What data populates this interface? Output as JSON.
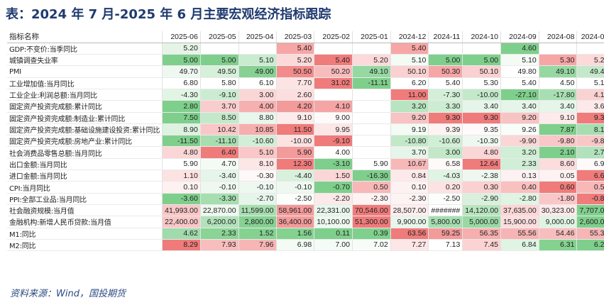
{
  "title": "表：2024 年 7 月-2025 年 6 月主要宏观经济指标跟踪",
  "source": "资料来源：Wind，国投期货",
  "table": {
    "label_header": "指标名称",
    "columns": [
      "2025-06",
      "2025-05",
      "2025-04",
      "2025-03",
      "2025-02",
      "2025-01",
      "2024-12",
      "2024-11",
      "2024-10",
      "2024-09",
      "2024-08",
      "2024-07"
    ],
    "rows": [
      {
        "label": "GDP:不变价:当季同比",
        "values": [
          "5.20",
          "",
          "",
          "5.40",
          "",
          "",
          "5.40",
          "",
          "",
          "4.60",
          "",
          ""
        ],
        "colors": [
          "#e6f4e8",
          "",
          "",
          "#f7a6a6",
          "",
          "",
          "#f7a6a6",
          "",
          "",
          "#7fcf8c",
          "",
          ""
        ]
      },
      {
        "label": "城镇调查失业率",
        "values": [
          "5.00",
          "5.00",
          "5.10",
          "5.20",
          "5.40",
          "5.20",
          "5.10",
          "5.00",
          "5.00",
          "5.10",
          "5.30",
          "5.20"
        ],
        "colors": [
          "#7fcf8c",
          "#7fcf8c",
          "#c9ebcf",
          "#fdd9d9",
          "#f07b7b",
          "#fdd9d9",
          "#f3fbf4",
          "#7fcf8c",
          "#7fcf8c",
          "#f3fbf4",
          "#f7a6a6",
          "#fdd9d9"
        ]
      },
      {
        "label": "PMI",
        "values": [
          "49.70",
          "49.50",
          "49.00",
          "50.50",
          "50.20",
          "49.10",
          "50.10",
          "50.30",
          "50.10",
          "49.80",
          "49.10",
          "49.40"
        ],
        "colors": [
          "#eef8f0",
          "#d6f0da",
          "#86d193",
          "#f28c8c",
          "#f9bcbc",
          "#96d8a2",
          "#fbd0d0",
          "#f7a6a6",
          "#fbd0d0",
          "#ffffff",
          "#96d8a2",
          "#c4e9ca"
        ]
      },
      {
        "label": "工业增加值:当月同比",
        "values": [
          "6.80",
          "5.80",
          "6.10",
          "7.70",
          "31.02",
          "-11.11",
          "6.20",
          "5.40",
          "5.30",
          "5.40",
          "4.50",
          "5.10"
        ],
        "colors": [
          "#ffffff",
          "#ffffff",
          "#ffffff",
          "#fde4e4",
          "#f07b7b",
          "#7fcf8c",
          "#ffffff",
          "#ffffff",
          "#ffffff",
          "#ffffff",
          "#ffffff",
          "#ffffff"
        ]
      },
      {
        "label": "工业企业:利润总额:当月同比",
        "values": [
          "-4.30",
          "-9.10",
          "3.00",
          "2.60",
          "",
          "",
          "11.00",
          "-7.30",
          "-10.00",
          "-27.10",
          "-17.80",
          "4.10"
        ],
        "colors": [
          "#e2f5e5",
          "#cbecd0",
          "#fbd6d6",
          "#fcdede",
          "",
          "",
          "#f07b7b",
          "#d3efd8",
          "#c4e9ca",
          "#7fcf8c",
          "#a8dfb2",
          "#fad2d2"
        ]
      },
      {
        "label": "固定资产投资完成额:累计同比",
        "values": [
          "2.80",
          "3.70",
          "4.00",
          "4.20",
          "4.10",
          "",
          "3.20",
          "3.30",
          "3.40",
          "3.40",
          "3.40",
          "3.60"
        ],
        "colors": [
          "#7fcf8c",
          "#f9cdcd",
          "#f6b0b0",
          "#f39a9a",
          "#f5a5a5",
          "",
          "#b8e5bf",
          "#cdedd2",
          "#e6f5e9",
          "#e6f5e9",
          "#e6f5e9",
          "#fde9e9"
        ]
      },
      {
        "label": "固定资产投资完成额:制造业:累计同比",
        "values": [
          "7.50",
          "8.50",
          "8.80",
          "9.10",
          "9.00",
          "",
          "9.20",
          "9.30",
          "9.30",
          "9.20",
          "9.10",
          "9.30"
        ],
        "colors": [
          "#7fcf8c",
          "#c4e9ca",
          "#e8f6eb",
          "#fdeaea",
          "#fffafa",
          "",
          "#f8c3c3",
          "#f07b7b",
          "#f07b7b",
          "#f8c3c3",
          "#fdeaea",
          "#f07b7b"
        ]
      },
      {
        "label": "固定资产投资完成额:基础设施建设投资:累计同比",
        "values": [
          "8.90",
          "10.42",
          "10.85",
          "11.50",
          "9.95",
          "",
          "9.19",
          "9.39",
          "9.35",
          "9.26",
          "7.87",
          "8.14"
        ],
        "colors": [
          "#ddf2e1",
          "#f9c7c7",
          "#f6aeae",
          "#f07b7b",
          "#fde6e6",
          "",
          "#f3fbf4",
          "#fdf3f3",
          "#fefafa",
          "#f9fdf9",
          "#7fcf8c",
          "#a6deb0"
        ]
      },
      {
        "label": "固定资产投资完成额:房地产业:累计同比",
        "values": [
          "-11.50",
          "-11.10",
          "-10.60",
          "-10.00",
          "-9.10",
          "",
          "-10.80",
          "-10.60",
          "-10.30",
          "-9.90",
          "-9.80",
          "-9.80"
        ],
        "colors": [
          "#7fcf8c",
          "#a6deb0",
          "#d1eed6",
          "#fde2e2",
          "#f07b7b",
          "",
          "#c2e8c8",
          "#d1eed6",
          "#eef8f0",
          "#fbd6d6",
          "#f9c7c7",
          "#f9c7c7"
        ]
      },
      {
        "label": "社会消费品零售总额:当月同比",
        "values": [
          "4.80",
          "6.40",
          "5.10",
          "5.90",
          "4.00",
          "",
          "3.70",
          "3.00",
          "4.80",
          "3.20",
          "2.10",
          "2.70"
        ],
        "colors": [
          "#fbd6d6",
          "#f07b7b",
          "#f9c7c7",
          "#f39a9a",
          "#ffffff",
          "",
          "#e6f5e9",
          "#c2e8c8",
          "#fbd6d6",
          "#d1eed6",
          "#7fcf8c",
          "#b2e2bb"
        ]
      },
      {
        "label": "出口金额:当月同比",
        "values": [
          "5.90",
          "4.70",
          "8.10",
          "12.30",
          "-3.10",
          "5.90",
          "10.67",
          "6.58",
          "12.64",
          "2.33",
          "8.60",
          "6.93"
        ],
        "colors": [
          "#ffffff",
          "#f3fbf4",
          "#fde6e6",
          "#f07b7b",
          "#7fcf8c",
          "#ffffff",
          "#f8b8b8",
          "#fffafa",
          "#f07b7b",
          "#d1eed6",
          "#fcdcdc",
          "#fffafa"
        ]
      },
      {
        "label": "进口金额:当月同比",
        "values": [
          "1.10",
          "-3.40",
          "-0.30",
          "-4.40",
          "1.50",
          "-16.30",
          "0.84",
          "-4.03",
          "-2.38",
          "0.13",
          "0.05",
          "6.63"
        ],
        "colors": [
          "#fde2e2",
          "#e6f5e9",
          "#fff8f8",
          "#d8f0dc",
          "#fbd6d6",
          "#7fcf8c",
          "#fde9e9",
          "#e0f4e4",
          "#eef8f0",
          "#fdf1f1",
          "#fdf3f3",
          "#f07b7b"
        ]
      },
      {
        "label": "CPI:当月同比",
        "values": [
          "0.10",
          "-0.10",
          "-0.10",
          "-0.10",
          "-0.70",
          "0.50",
          "0.10",
          "0.20",
          "0.30",
          "0.40",
          "0.60",
          "0.50"
        ],
        "colors": [
          "#fdf1f1",
          "#eef8f0",
          "#eef8f0",
          "#eef8f0",
          "#7fcf8c",
          "#f8b8b8",
          "#fdf1f1",
          "#fde2e2",
          "#fbd0d0",
          "#f9c0c0",
          "#f07b7b",
          "#f8b8b8"
        ]
      },
      {
        "label": "PPI:全部工业品:当月同比",
        "values": [
          "-3.60",
          "-3.30",
          "-2.70",
          "-2.50",
          "-2.20",
          "-2.30",
          "-2.30",
          "-2.50",
          "-2.90",
          "-2.80",
          "-1.80",
          "-0.80"
        ],
        "colors": [
          "#7fcf8c",
          "#a6deb0",
          "#e6f5e9",
          "#fbfefb",
          "#fde9e9",
          "#fef3f3",
          "#fef3f3",
          "#fbfefb",
          "#d8f0dc",
          "#e0f4e4",
          "#f9c7c7",
          "#f07b7b"
        ]
      },
      {
        "label": "社会融资规模:当月值",
        "values": [
          "41,993.00",
          "22,870.00",
          "11,599.00",
          "58,961.00",
          "22,331.00",
          "70,546.00",
          "28,507.00",
          "#######",
          "14,120.00",
          "37,635.00",
          "30,323.00",
          "7,707.00"
        ],
        "colors": [
          "#f9c7c7",
          "#eef8f0",
          "#a6deb0",
          "#f39a9a",
          "#e8f6eb",
          "#f07b7b",
          "#fdeeee",
          "#ffffff",
          "#b8e5bf",
          "#fbd6d6",
          "#fde9e9",
          "#7fcf8c"
        ]
      },
      {
        "label": "金融机构:新增人民币贷款:当月值",
        "values": [
          "22,400.00",
          "6,200.00",
          "2,800.00",
          "36,400.00",
          "10,100.00",
          "51,300.00",
          "9,900.00",
          "5,800.00",
          "5,000.00",
          "15,900.00",
          "9,000.00",
          "2,600.00"
        ],
        "colors": [
          "#f9c7c7",
          "#b2e2bb",
          "#86d193",
          "#f39a9a",
          "#eef8f0",
          "#f07b7b",
          "#e8f6eb",
          "#a6deb0",
          "#9ad9a5",
          "#fbdede",
          "#e0f4e4",
          "#7fcf8c"
        ]
      },
      {
        "label": "M1:同比",
        "values": [
          "4.62",
          "2.33",
          "1.52",
          "1.56",
          "0.11",
          "0.39",
          "63.56",
          "59.25",
          "56.35",
          "55.56",
          "54.46",
          "55.31"
        ],
        "colors": [
          "#a0dbab",
          "#8ad495",
          "#84d290",
          "#84d290",
          "#7fcf8c",
          "#80d08d",
          "#f07b7b",
          "#f39a9a",
          "#f6aeae",
          "#f7b4b4",
          "#f8bdbd",
          "#f7b5b5"
        ]
      },
      {
        "label": "M2:同比",
        "values": [
          "8.29",
          "7.93",
          "7.96",
          "6.98",
          "7.00",
          "7.02",
          "7.27",
          "7.13",
          "7.45",
          "6.84",
          "6.31",
          "6.27"
        ],
        "colors": [
          "#f07b7b",
          "#f8bdbd",
          "#f7b5b5",
          "#f3fbf4",
          "#f5fbf6",
          "#f8fcf9",
          "#fde6e6",
          "#ffffff",
          "#fcd3d3",
          "#e0f4e4",
          "#84d290",
          "#7fcf8c"
        ]
      }
    ]
  }
}
